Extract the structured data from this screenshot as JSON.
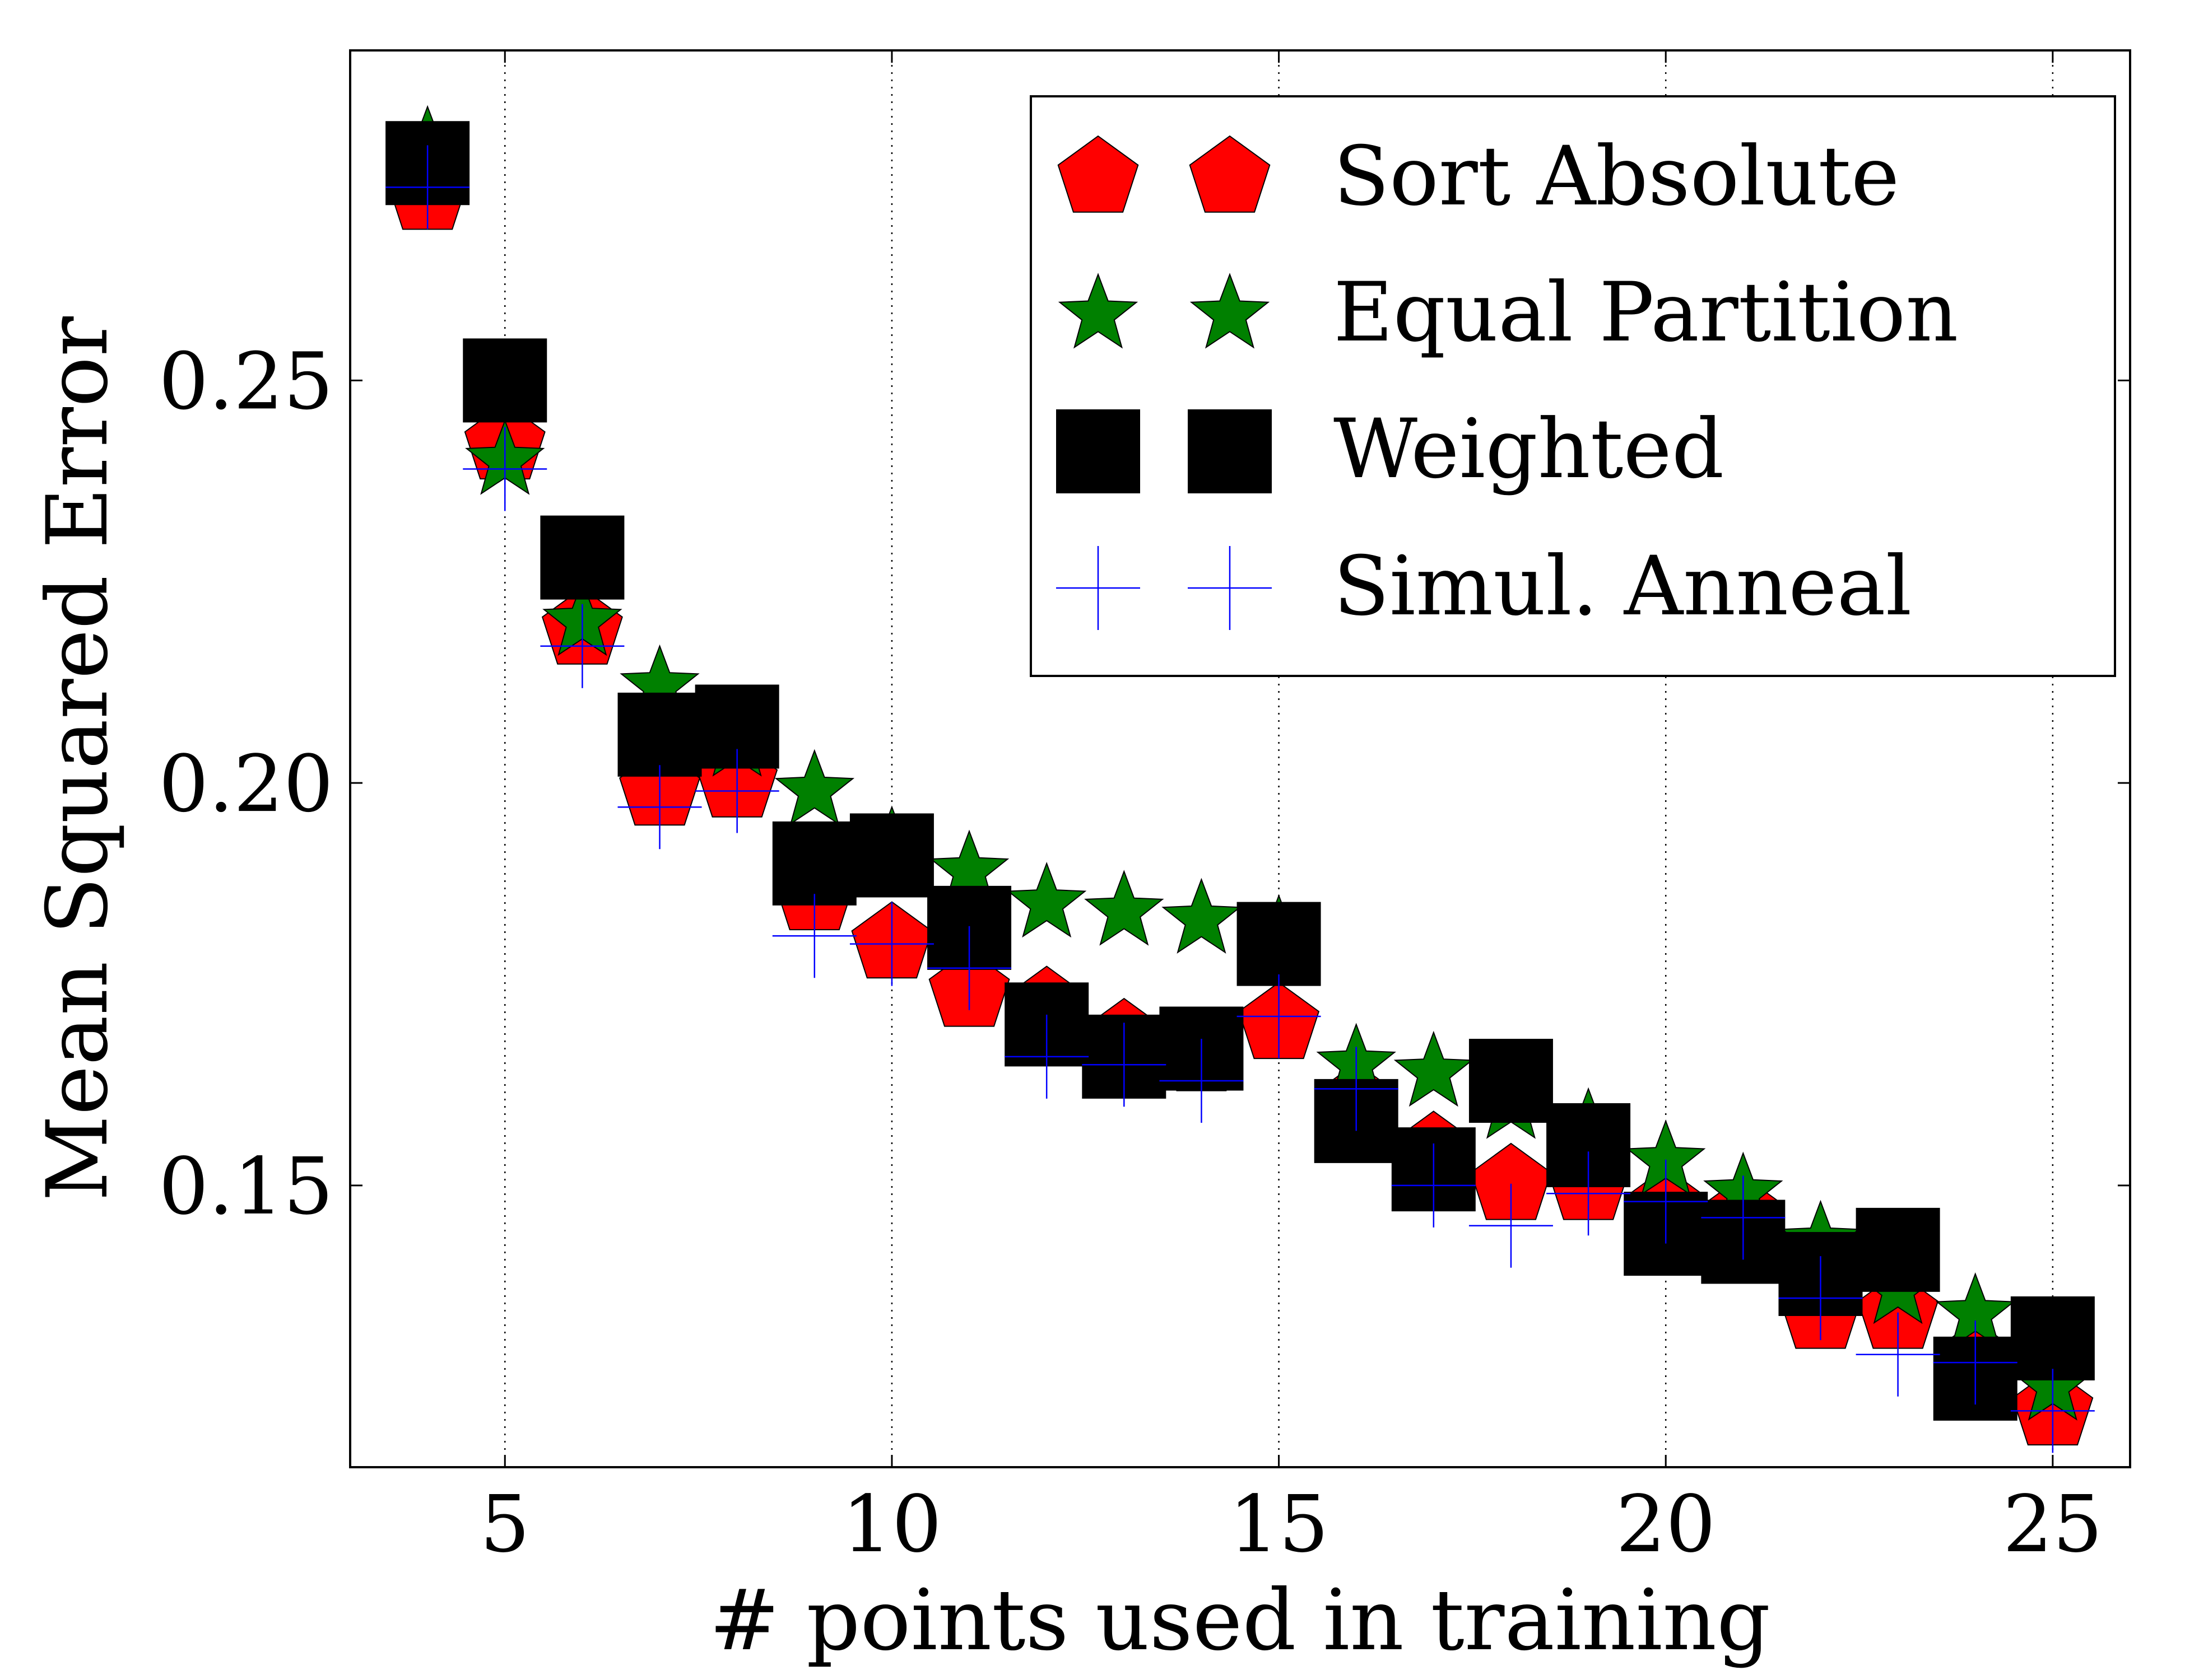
{
  "chart_data": {
    "type": "scatter",
    "title": "",
    "xlabel": "# points used in training",
    "ylabel": "Mean Squared Error",
    "xlim": [
      3,
      26
    ],
    "ylim": [
      0.115,
      0.291
    ],
    "xticks": [
      5,
      10,
      15,
      20,
      25
    ],
    "xtick_labels": [
      "5",
      "10",
      "15",
      "20",
      "25"
    ],
    "yticks": [
      0.15,
      0.2,
      0.25
    ],
    "ytick_labels": [
      "0.15",
      "0.20",
      "0.25"
    ],
    "grid": "vertical dotted lines at x ticks",
    "legend_position": "top-right",
    "x": [
      4,
      5,
      6,
      7,
      8,
      9,
      10,
      11,
      12,
      13,
      14,
      15,
      16,
      17,
      18,
      19,
      20,
      21,
      22,
      23,
      24,
      25
    ],
    "series": [
      {
        "name": "Sort Absolute",
        "marker": "pentagon",
        "color": "#ff0000",
        "values": [
          0.273,
          0.242,
          0.219,
          0.199,
          0.2,
          0.186,
          0.18,
          0.174,
          0.172,
          0.168,
          0.166,
          0.17,
          0.16,
          0.154,
          0.15,
          0.15,
          0.147,
          0.146,
          0.134,
          0.134,
          0.128,
          0.122
        ]
      },
      {
        "name": "Equal Partition",
        "marker": "star",
        "color": "#008000",
        "values": [
          0.279,
          0.24,
          0.22,
          0.212,
          0.205,
          0.199,
          0.192,
          0.189,
          0.185,
          0.184,
          0.183,
          0.181,
          0.165,
          0.164,
          0.16,
          0.157,
          0.153,
          0.149,
          0.143,
          0.137,
          0.134,
          0.125
        ]
      },
      {
        "name": "Weighted",
        "marker": "square",
        "color": "#000000",
        "values": [
          0.277,
          0.25,
          0.228,
          0.206,
          0.207,
          0.19,
          0.191,
          0.182,
          0.17,
          0.166,
          0.167,
          0.18,
          0.158,
          0.152,
          0.163,
          0.155,
          0.144,
          0.143,
          0.139,
          0.142,
          0.126,
          0.131
        ]
      },
      {
        "name": "Simul. Anneal",
        "marker": "plus",
        "color": "#0000ff",
        "values": [
          0.274,
          0.239,
          0.217,
          0.197,
          0.199,
          0.181,
          0.18,
          0.177,
          0.166,
          0.165,
          0.163,
          0.171,
          0.162,
          0.15,
          0.145,
          0.149,
          0.148,
          0.146,
          0.136,
          0.129,
          0.128,
          0.122
        ]
      }
    ]
  }
}
